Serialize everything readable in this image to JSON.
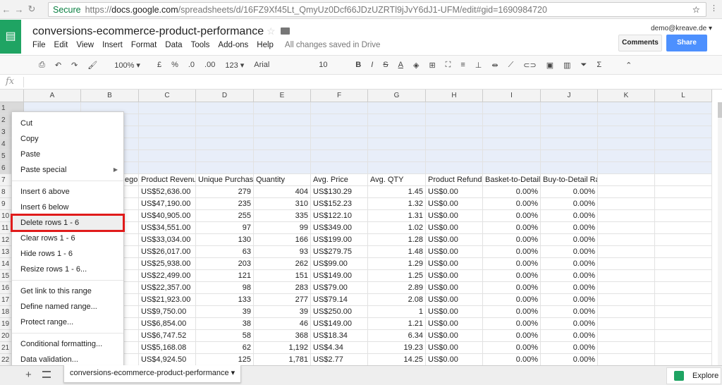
{
  "browser": {
    "secure": "Secure",
    "url_prefix": "https://",
    "url_host": "docs.google.com",
    "url_path": "/spreadsheets/d/16FZ9Xf45Lt_QmyUz0Dcf66JDzUZRTl9jJvY6dJ1-UFM/edit#gid=1690984720"
  },
  "doc": {
    "title": "conversions-ecommerce-product-performance",
    "account": "demo@kreave.de ▾",
    "saved": "All changes saved in Drive",
    "comments": "Comments",
    "share": "Share"
  },
  "menu": [
    "File",
    "Edit",
    "View",
    "Insert",
    "Format",
    "Data",
    "Tools",
    "Add-ons",
    "Help"
  ],
  "toolbar": {
    "zoom": "100% ▾",
    "currency": "£",
    "percent": "%",
    "dec_less": ".0",
    "dec_more": ".00",
    "format": "123 ▾",
    "font": "Arial",
    "font_size": "10"
  },
  "columns": [
    "A",
    "B",
    "C",
    "D",
    "E",
    "F",
    "G",
    "H",
    "I",
    "J",
    "K",
    "L"
  ],
  "header_row": [
    "",
    "egory",
    "Product Revenue",
    "Unique Purchases",
    "Quantity",
    "Avg. Price",
    "Avg. QTY",
    "Product Refund Amount",
    "Basket-to-Detail",
    "Buy-to-Detail Rate",
    "",
    ""
  ],
  "rows": [
    [
      "US$52,636.00",
      "279",
      "404",
      "US$130.29",
      "1.45",
      "US$0.00",
      "0.00%",
      "0.00%"
    ],
    [
      "US$47,190.00",
      "235",
      "310",
      "US$152.23",
      "1.32",
      "US$0.00",
      "0.00%",
      "0.00%"
    ],
    [
      "US$40,905.00",
      "255",
      "335",
      "US$122.10",
      "1.31",
      "US$0.00",
      "0.00%",
      "0.00%"
    ],
    [
      "US$34,551.00",
      "97",
      "99",
      "US$349.00",
      "1.02",
      "US$0.00",
      "0.00%",
      "0.00%"
    ],
    [
      "US$33,034.00",
      "130",
      "166",
      "US$199.00",
      "1.28",
      "US$0.00",
      "0.00%",
      "0.00%"
    ],
    [
      "US$26,017.00",
      "63",
      "93",
      "US$279.75",
      "1.48",
      "US$0.00",
      "0.00%",
      "0.00%"
    ],
    [
      "US$25,938.00",
      "203",
      "262",
      "US$99.00",
      "1.29",
      "US$0.00",
      "0.00%",
      "0.00%"
    ],
    [
      "US$22,499.00",
      "121",
      "151",
      "US$149.00",
      "1.25",
      "US$0.00",
      "0.00%",
      "0.00%"
    ],
    [
      "US$22,357.00",
      "98",
      "283",
      "US$79.00",
      "2.89",
      "US$0.00",
      "0.00%",
      "0.00%"
    ],
    [
      "US$21,923.00",
      "133",
      "277",
      "US$79.14",
      "2.08",
      "US$0.00",
      "0.00%",
      "0.00%"
    ],
    [
      "US$9,750.00",
      "39",
      "39",
      "US$250.00",
      "1",
      "US$0.00",
      "0.00%",
      "0.00%"
    ],
    [
      "US$6,854.00",
      "38",
      "46",
      "US$149.00",
      "1.21",
      "US$0.00",
      "0.00%",
      "0.00%"
    ],
    [
      "US$6,747.52",
      "58",
      "368",
      "US$18.34",
      "6.34",
      "US$0.00",
      "0.00%",
      "0.00%"
    ],
    [
      "US$5,168.08",
      "62",
      "1,192",
      "US$4.34",
      "19.23",
      "US$0.00",
      "0.00%",
      "0.00%"
    ],
    [
      "US$4,924.50",
      "125",
      "1,781",
      "US$2.77",
      "14.25",
      "US$0.00",
      "0.00%",
      "0.00%"
    ]
  ],
  "context_menu": [
    {
      "label": "Cut"
    },
    {
      "label": "Copy"
    },
    {
      "label": "Paste"
    },
    {
      "label": "Paste special",
      "submenu": true
    },
    {
      "sep": true
    },
    {
      "label": "Insert 6 above"
    },
    {
      "label": "Insert 6 below"
    },
    {
      "label": "Delete rows 1 - 6",
      "highlighted": true
    },
    {
      "label": "Clear rows 1 - 6"
    },
    {
      "label": "Hide rows 1 - 6"
    },
    {
      "label": "Resize rows 1 - 6..."
    },
    {
      "sep": true
    },
    {
      "label": "Get link to this range"
    },
    {
      "label": "Define named range..."
    },
    {
      "label": "Protect range..."
    },
    {
      "sep": true
    },
    {
      "label": "Conditional formatting..."
    },
    {
      "label": "Data validation..."
    }
  ],
  "sheet_tab": "conversions-ecommerce-product-performance ▾",
  "explore": "Explore"
}
